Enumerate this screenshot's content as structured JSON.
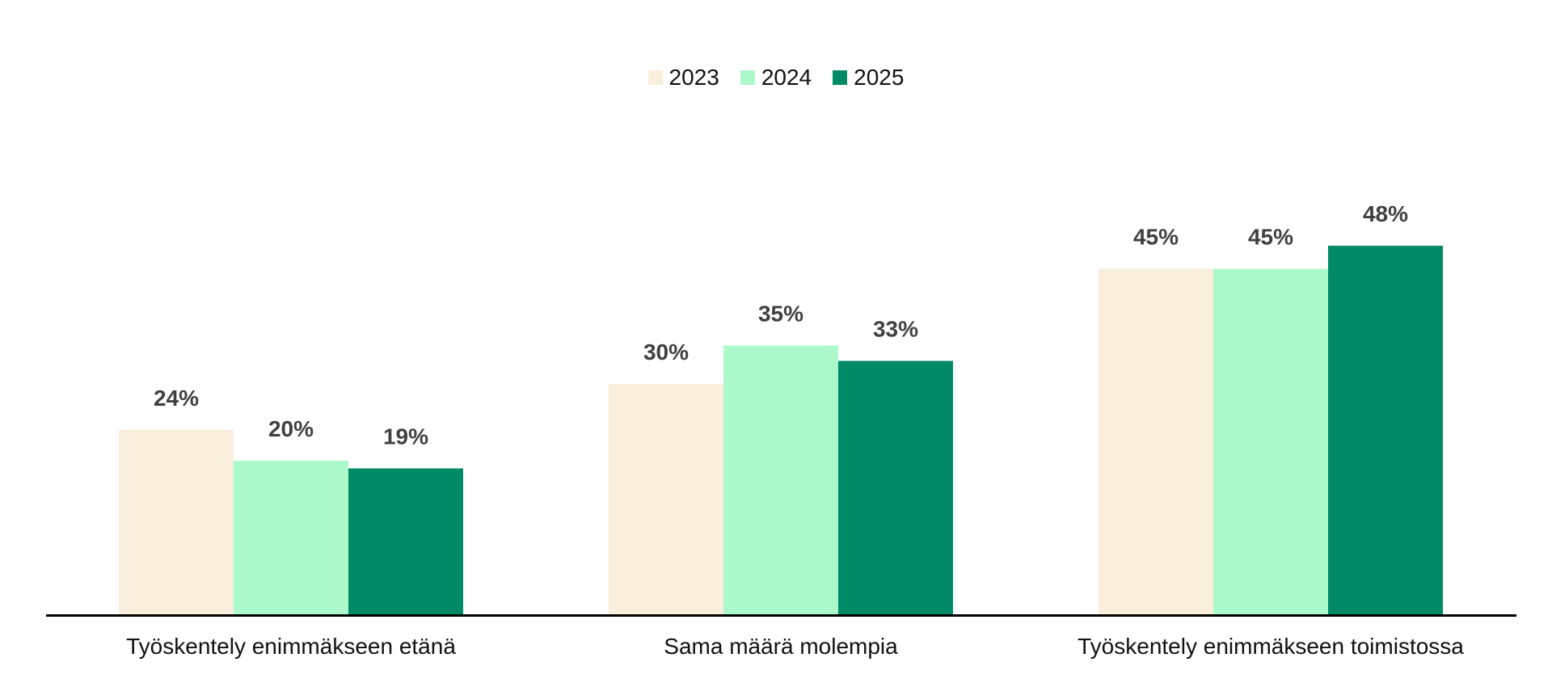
{
  "chart_data": {
    "type": "bar",
    "categories": [
      "Työskentely enimmäkseen etänä",
      "Sama määrä molempia",
      "Työskentely enimmäkseen toimistossa"
    ],
    "series": [
      {
        "name": "2023",
        "color": "#FAEFDC",
        "values": [
          24,
          30,
          45
        ]
      },
      {
        "name": "2024",
        "color": "#ABF9CB",
        "values": [
          20,
          35,
          45
        ]
      },
      {
        "name": "2025",
        "color": "#008A66",
        "values": [
          19,
          33,
          48
        ]
      }
    ],
    "value_suffix": "%",
    "ylim": [
      0,
      60
    ],
    "legend_position": "top-center",
    "grid": false,
    "axis_color": "#000000",
    "label_color": "#404040"
  }
}
